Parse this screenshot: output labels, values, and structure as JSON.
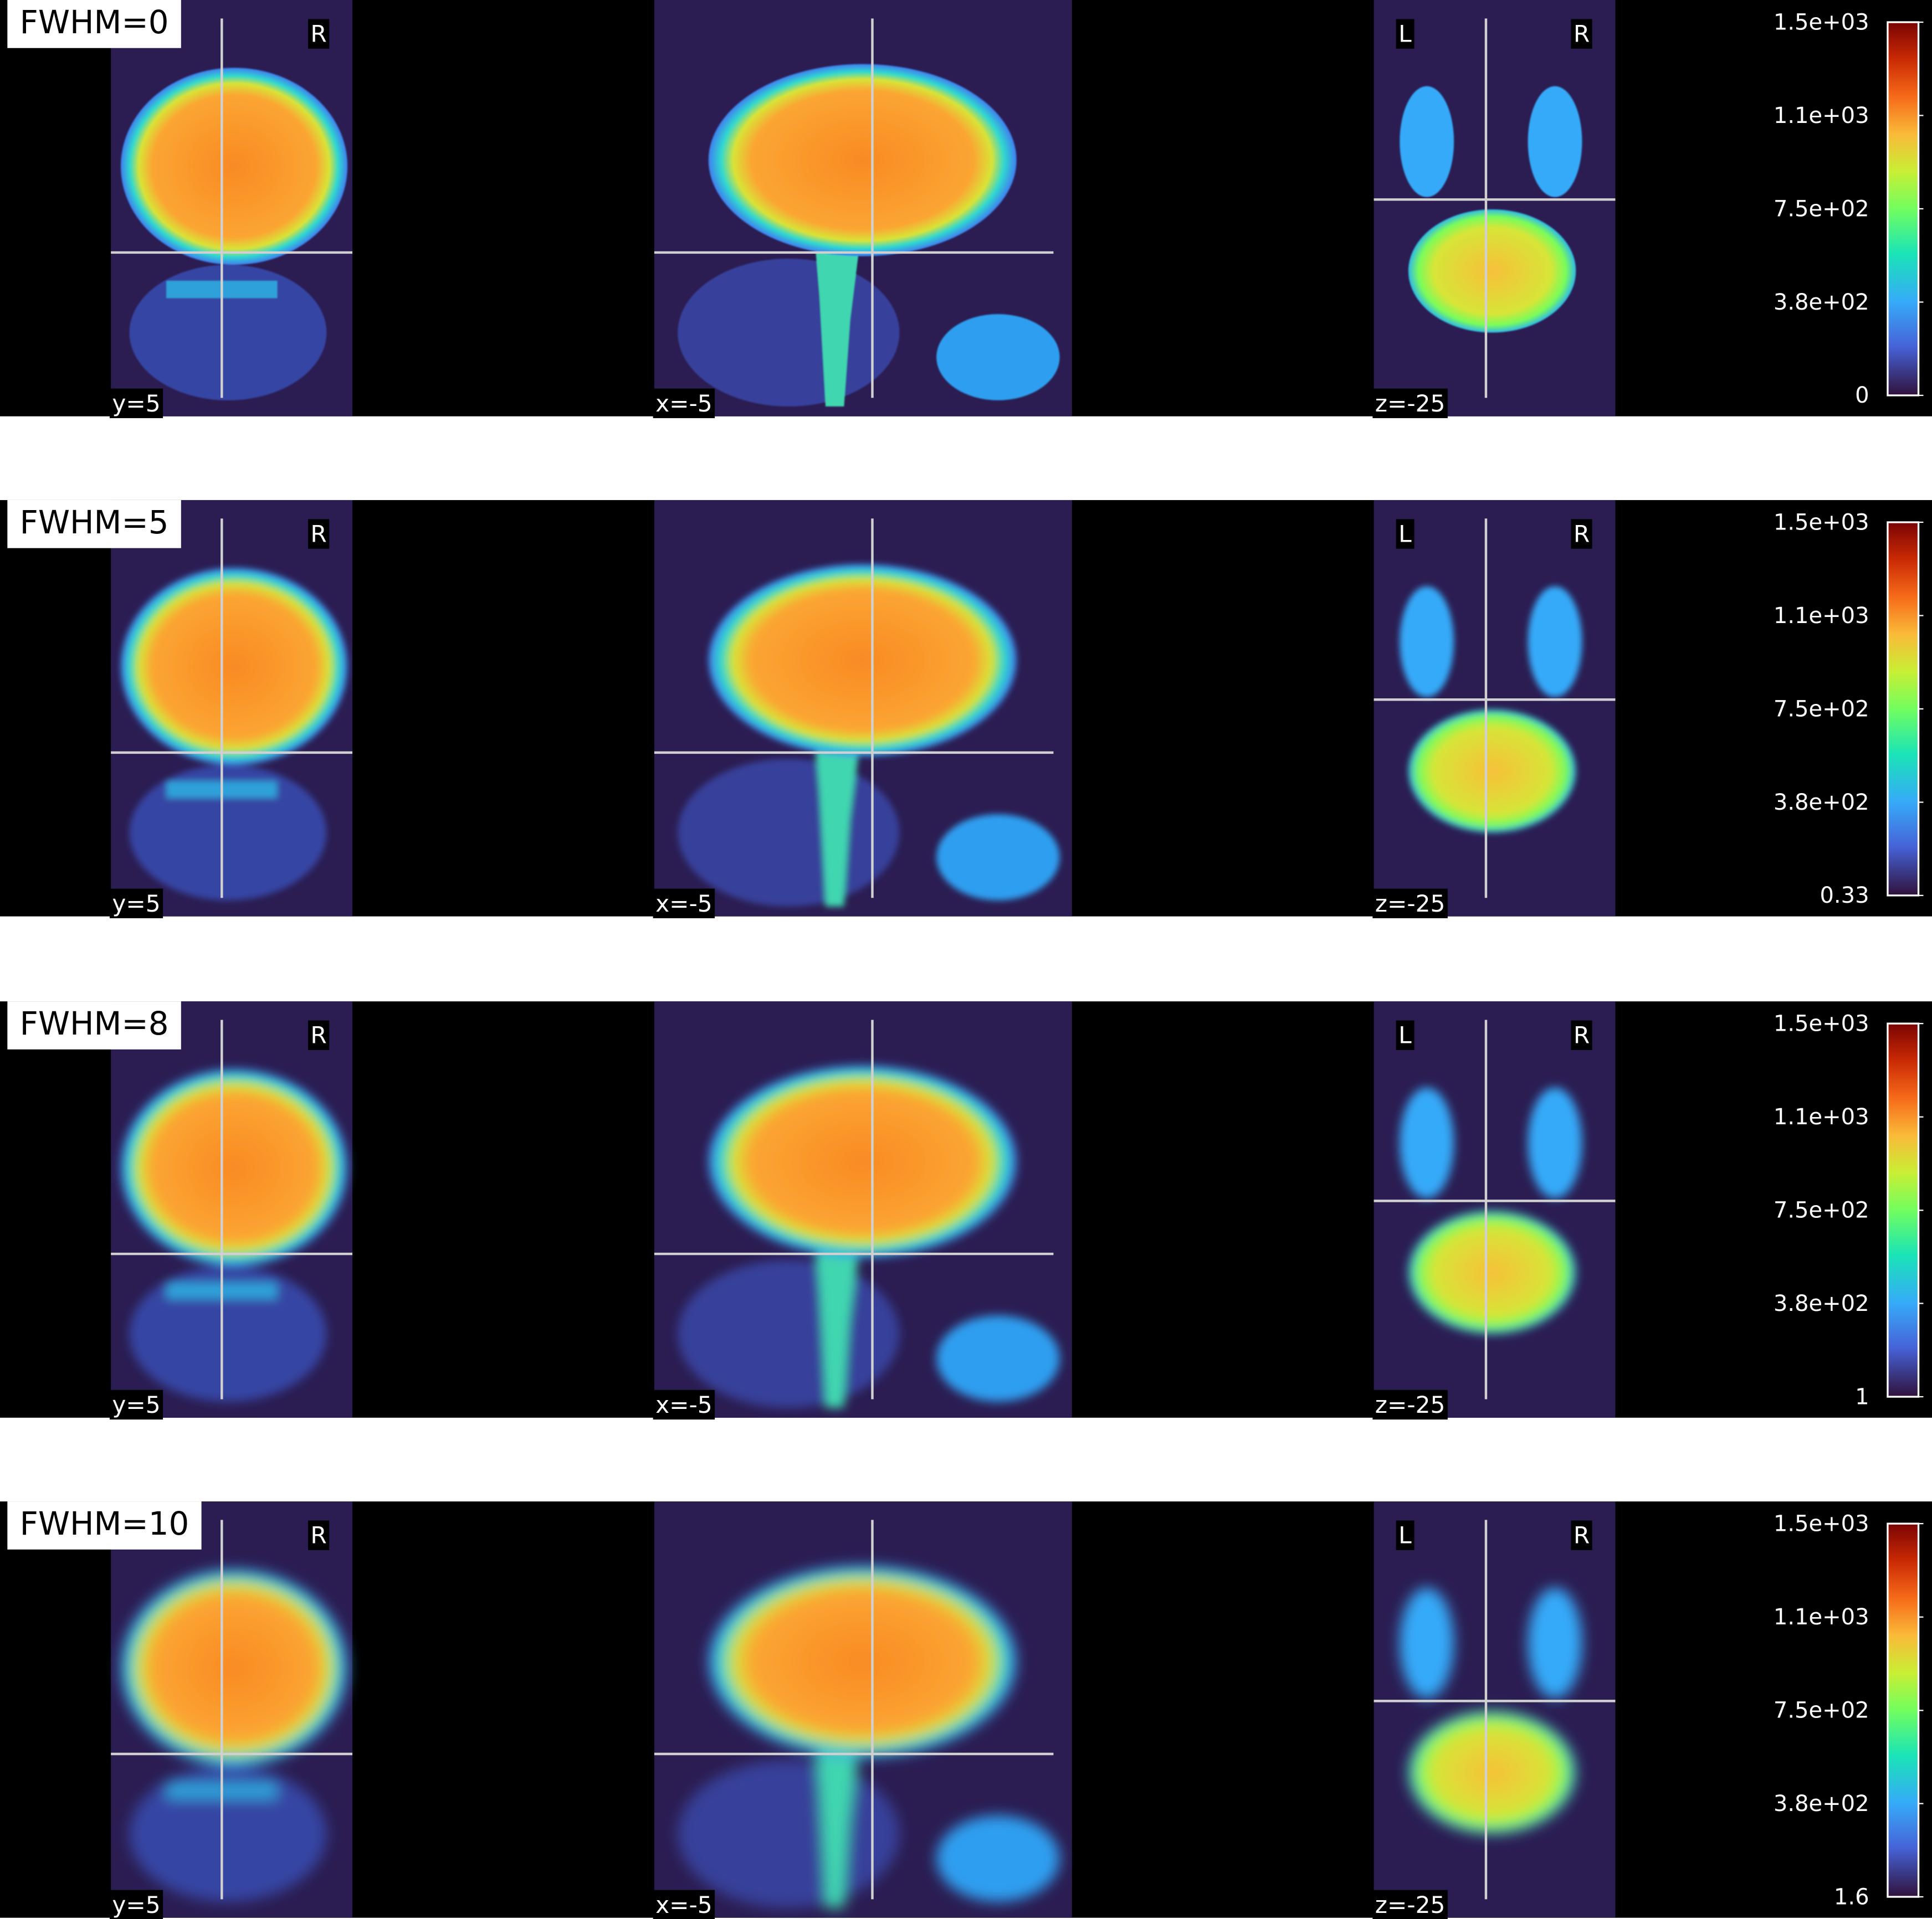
{
  "panels": [
    {
      "title": "FWHM=0",
      "slices": [
        {
          "label": "y=5",
          "orientation_labels": [
            "R"
          ]
        },
        {
          "label": "x=-5",
          "orientation_labels": []
        },
        {
          "label": "z=-25",
          "orientation_labels": [
            "L",
            "R"
          ]
        }
      ],
      "colorbar": {
        "vlim": [
          0,
          1500
        ],
        "ticks": [
          0,
          {
            "value": 375,
            "label": "3.8e+02"
          },
          {
            "value": 750,
            "label": "7.5e+02"
          },
          {
            "value": 1125,
            "label": "1.1e+03"
          },
          {
            "value": 1500,
            "label": "1.5e+03"
          }
        ]
      }
    },
    {
      "title": "FWHM=5",
      "slices": [
        {
          "label": "y=5",
          "orientation_labels": [
            "R"
          ]
        },
        {
          "label": "x=-5",
          "orientation_labels": []
        },
        {
          "label": "z=-25",
          "orientation_labels": [
            "L",
            "R"
          ]
        }
      ],
      "colorbar": {
        "vlim": [
          0.33,
          1500
        ],
        "ticks": [
          0.33,
          {
            "value": 375,
            "label": "3.8e+02"
          },
          {
            "value": 750,
            "label": "7.5e+02"
          },
          {
            "value": 1125,
            "label": "1.1e+03"
          },
          {
            "value": 1500,
            "label": "1.5e+03"
          }
        ]
      }
    },
    {
      "title": "FWHM=8",
      "slices": [
        {
          "label": "y=5",
          "orientation_labels": [
            "R"
          ]
        },
        {
          "label": "x=-5",
          "orientation_labels": []
        },
        {
          "label": "z=-25",
          "orientation_labels": [
            "L",
            "R"
          ]
        }
      ],
      "colorbar": {
        "vlim": [
          1,
          1500
        ],
        "ticks": [
          1,
          {
            "value": 376,
            "label": "3.8e+02"
          },
          {
            "value": 750,
            "label": "7.5e+02"
          },
          {
            "value": 1125,
            "label": "1.1e+03"
          },
          {
            "value": 1500,
            "label": "1.5e+03"
          }
        ]
      }
    },
    {
      "title": "FWHM=10",
      "slices": [
        {
          "label": "y=5",
          "orientation_labels": [
            "R"
          ]
        },
        {
          "label": "x=-5",
          "orientation_labels": []
        },
        {
          "label": "z=-25",
          "orientation_labels": [
            "L",
            "R"
          ]
        }
      ],
      "colorbar": {
        "vlim": [
          1.6,
          1500
        ],
        "ticks": [
          1.6,
          {
            "value": 376,
            "label": "3.8e+02"
          },
          {
            "value": 750,
            "label": "7.5e+02"
          },
          {
            "value": 1125,
            "label": "1.1e+03"
          },
          {
            "value": 1500,
            "label": "1.5e+03"
          }
        ]
      }
    }
  ]
}
